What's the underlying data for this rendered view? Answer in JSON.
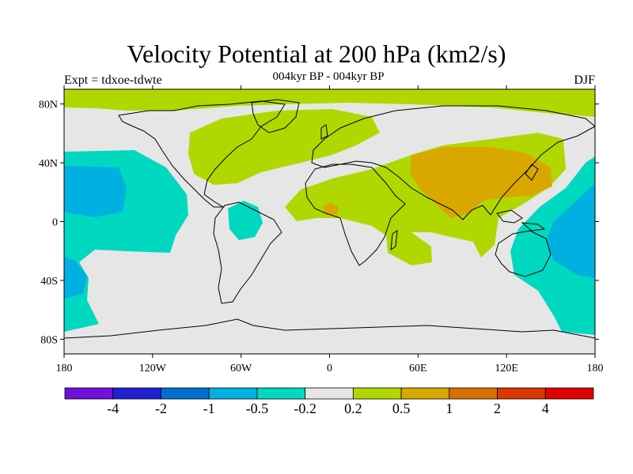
{
  "title": "Velocity Potential at 200 hPa (km2/s)",
  "subtitle": "004kyr BP - 004kyr BP",
  "experiment": "Expt = tdxoe-tdwte",
  "season": "DJF",
  "map": {
    "projection": "cylindrical-equidistant",
    "lon_range": [
      -180,
      180
    ],
    "lat_range": [
      -90,
      90
    ],
    "lat_ticks": [
      {
        "value": 80,
        "label": "80N"
      },
      {
        "value": 40,
        "label": "40N"
      },
      {
        "value": 0,
        "label": "0"
      },
      {
        "value": -40,
        "label": "40S"
      },
      {
        "value": -80,
        "label": "80S"
      }
    ],
    "lon_ticks": [
      {
        "value": -180,
        "label": "180"
      },
      {
        "value": -120,
        "label": "120W"
      },
      {
        "value": -60,
        "label": "60W"
      },
      {
        "value": 0,
        "label": "0"
      },
      {
        "value": 60,
        "label": "60E"
      },
      {
        "value": 120,
        "label": "120E"
      },
      {
        "value": 180,
        "label": "180"
      }
    ],
    "background_color": "#e6e6e6",
    "coastline_color": "#000000"
  },
  "colorbar": {
    "colors": [
      "#7010d8",
      "#2020d0",
      "#0070d0",
      "#00b0e0",
      "#00d8c0",
      "#e6e6e6",
      "#b0d800",
      "#d8a800",
      "#d87000",
      "#d83800",
      "#e00000"
    ],
    "labels": [
      "-4",
      "-2",
      "-1",
      "-0.5",
      "-0.2",
      "0.2",
      "0.5",
      "1",
      "2",
      "4"
    ]
  },
  "fields": [
    {
      "name": "arctic-positive-band",
      "category": "0.2 to 0.5",
      "color": "#b0d800"
    },
    {
      "name": "north-atlantic-positive",
      "category": "0.2 to 0.5",
      "color": "#b0d800"
    },
    {
      "name": "africa-asia-positive",
      "category": "0.2 to 0.5",
      "color": "#b0d800"
    },
    {
      "name": "asia-core",
      "category": "0.5 to 1",
      "color": "#d8a800"
    },
    {
      "name": "west-africa-core",
      "category": "0.5 to 1",
      "color": "#d8a800"
    },
    {
      "name": "pacific-negative-west",
      "category": "-0.5 to -0.2",
      "color": "#00d8c0"
    },
    {
      "name": "pacific-negative-east",
      "category": "-0.5 to -0.2",
      "color": "#00d8c0"
    },
    {
      "name": "brazil-negative",
      "category": "-0.5 to -0.2",
      "color": "#00d8c0"
    },
    {
      "name": "pacific-core",
      "category": "-1 to -0.5",
      "color": "#00b0e0"
    },
    {
      "name": "australia-core",
      "category": "-1 to -0.5",
      "color": "#00b0e0"
    }
  ]
}
